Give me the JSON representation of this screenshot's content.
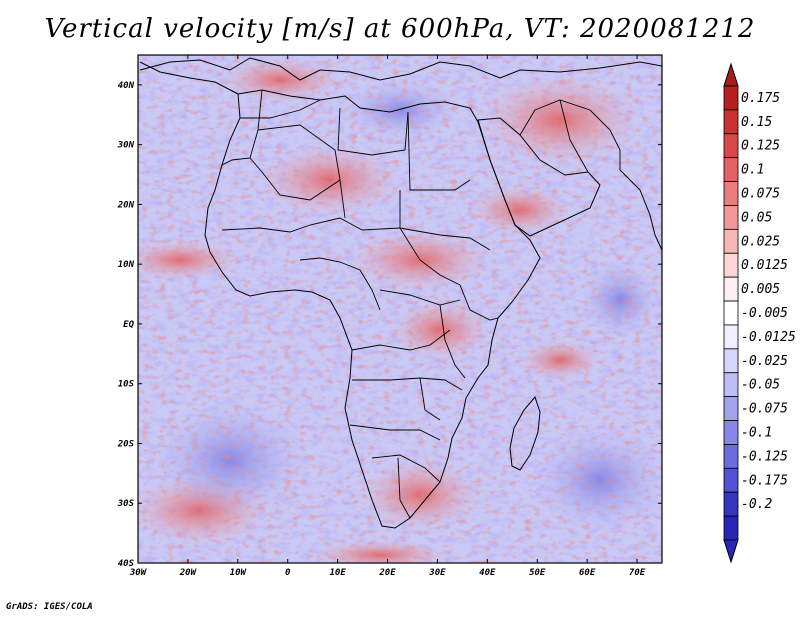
{
  "title": "Vertical velocity [m/s] at 600hPa, VT: 2020081212",
  "credit": "GrADS: IGES/COLA",
  "map": {
    "lon_range": [
      -30,
      75
    ],
    "lat_range": [
      -40,
      45
    ],
    "lon_ticks": [
      {
        "value": -30,
        "label": "30W"
      },
      {
        "value": -20,
        "label": "20W"
      },
      {
        "value": -10,
        "label": "10W"
      },
      {
        "value": 0,
        "label": "0"
      },
      {
        "value": 10,
        "label": "10E"
      },
      {
        "value": 20,
        "label": "20E"
      },
      {
        "value": 30,
        "label": "30E"
      },
      {
        "value": 40,
        "label": "40E"
      },
      {
        "value": 50,
        "label": "50E"
      },
      {
        "value": 60,
        "label": "60E"
      },
      {
        "value": 70,
        "label": "70E"
      }
    ],
    "lat_ticks": [
      {
        "value": 40,
        "label": "40N"
      },
      {
        "value": 30,
        "label": "30N"
      },
      {
        "value": 20,
        "label": "20N"
      },
      {
        "value": 10,
        "label": "10N"
      },
      {
        "value": 0,
        "label": "EQ"
      },
      {
        "value": -10,
        "label": "10S"
      },
      {
        "value": -20,
        "label": "20S"
      },
      {
        "value": -30,
        "label": "30S"
      },
      {
        "value": -40,
        "label": "40S"
      }
    ]
  },
  "colorbar": {
    "levels": [
      {
        "label": "0.175",
        "color": "#b51f1f"
      },
      {
        "label": "0.15",
        "color": "#c93232"
      },
      {
        "label": "0.125",
        "color": "#d94848"
      },
      {
        "label": "0.1",
        "color": "#e36262"
      },
      {
        "label": "0.075",
        "color": "#eb7d7d"
      },
      {
        "label": "0.05",
        "color": "#f19999"
      },
      {
        "label": "0.025",
        "color": "#f6b7b7"
      },
      {
        "label": "0.0125",
        "color": "#fad6d6"
      },
      {
        "label": "0.005",
        "color": "#fdf0f0"
      },
      {
        "label": "-0.005",
        "color": "#ffffff"
      },
      {
        "label": "-0.0125",
        "color": "#efefff"
      },
      {
        "label": "-0.025",
        "color": "#d6d6fb"
      },
      {
        "label": "-0.05",
        "color": "#bdbdf6"
      },
      {
        "label": "-0.075",
        "color": "#a2a2ef"
      },
      {
        "label": "-0.1",
        "color": "#8787e7"
      },
      {
        "label": "-0.125",
        "color": "#6c6cdd"
      },
      {
        "label": "-0.175",
        "color": "#5151d1"
      },
      {
        "label": "-0.2",
        "color": "#3535c0"
      }
    ],
    "top_color": "#a61e1e",
    "bottom_color": "#2a24b8"
  }
}
